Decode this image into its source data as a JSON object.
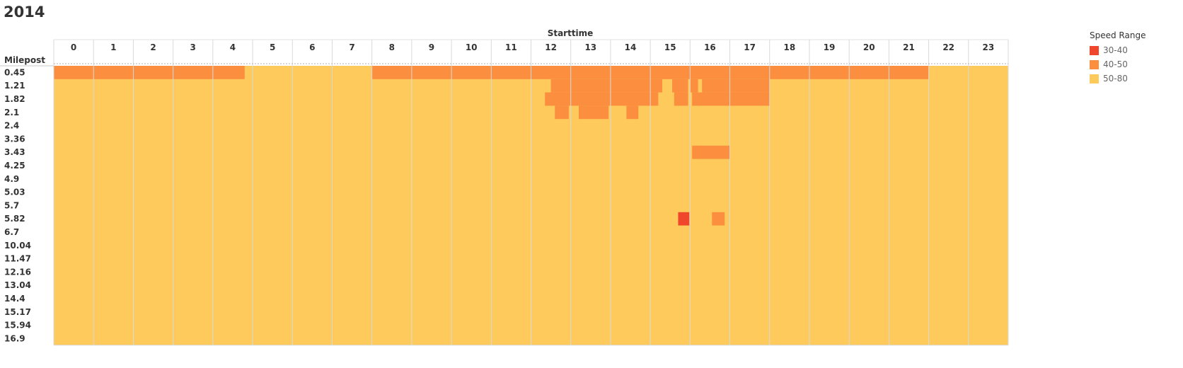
{
  "page": {
    "title": "2014"
  },
  "chart_data": {
    "type": "heatmap",
    "title": "2014",
    "xlabel": "Starttime",
    "ylabel": "Milepost",
    "x": [
      "0",
      "1",
      "2",
      "3",
      "4",
      "5",
      "6",
      "7",
      "8",
      "9",
      "10",
      "11",
      "12",
      "13",
      "14",
      "15",
      "16",
      "17",
      "18",
      "19",
      "20",
      "21",
      "22",
      "23"
    ],
    "y": [
      "0.45",
      "1.21",
      "1.82",
      "2.1",
      "2.4",
      "3.36",
      "3.43",
      "4.25",
      "4.9",
      "5.03",
      "5.7",
      "5.82",
      "6.7",
      "10.04",
      "11.47",
      "12.16",
      "13.04",
      "14.4",
      "15.17",
      "15.94",
      "16.9"
    ],
    "legend": {
      "title": "Speed Range",
      "position": "right",
      "items": [
        {
          "label": "30-40",
          "color": "#f0472c"
        },
        {
          "label": "40-50",
          "color": "#fb8f3f"
        },
        {
          "label": "50-80",
          "color": "#fdca5b"
        }
      ]
    },
    "default_range": "50-80",
    "cells": [
      {
        "mile": "0.45",
        "from": 0,
        "to": 4.8,
        "range": "40-50"
      },
      {
        "mile": "0.45",
        "from": 8.0,
        "to": 22.0,
        "range": "40-50"
      },
      {
        "mile": "1.21",
        "from": 12.5,
        "to": 15.3,
        "range": "40-50"
      },
      {
        "mile": "1.21",
        "from": 15.55,
        "to": 15.95,
        "range": "40-50"
      },
      {
        "mile": "1.21",
        "from": 16.0,
        "to": 16.2,
        "range": "40-50"
      },
      {
        "mile": "1.21",
        "from": 16.3,
        "to": 18.0,
        "range": "40-50"
      },
      {
        "mile": "1.82",
        "from": 12.35,
        "to": 15.2,
        "range": "40-50"
      },
      {
        "mile": "1.82",
        "from": 15.6,
        "to": 15.95,
        "range": "40-50"
      },
      {
        "mile": "1.82",
        "from": 16.05,
        "to": 18.0,
        "range": "40-50"
      },
      {
        "mile": "2.1",
        "from": 12.6,
        "to": 12.95,
        "range": "40-50"
      },
      {
        "mile": "2.1",
        "from": 13.2,
        "to": 13.95,
        "range": "40-50"
      },
      {
        "mile": "2.1",
        "from": 14.4,
        "to": 14.7,
        "range": "40-50"
      },
      {
        "mile": "3.43",
        "from": 16.05,
        "to": 17.0,
        "range": "40-50"
      },
      {
        "mile": "5.82",
        "from": 15.7,
        "to": 15.98,
        "range": "30-40"
      },
      {
        "mile": "5.82",
        "from": 16.55,
        "to": 16.87,
        "range": "40-50"
      }
    ],
    "grid": true
  }
}
